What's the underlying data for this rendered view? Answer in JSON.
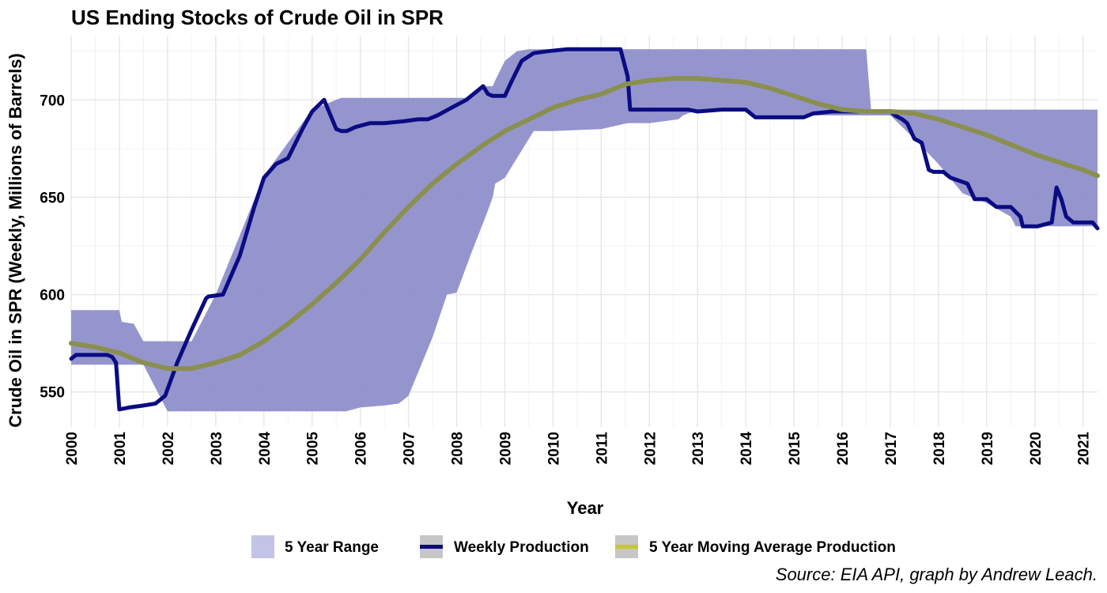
{
  "chart_data": {
    "type": "area",
    "title": "US Ending Stocks of Crude Oil in SPR",
    "xlabel": "Year",
    "ylabel": "Crude Oil in SPR (Weekly, Millions of Barrels)",
    "caption": "Source: EIA API, graph by Andrew Leach.",
    "xlim": [
      2000,
      2021.3
    ],
    "ylim": [
      532,
      733
    ],
    "x_ticks": [
      "2000",
      "2001",
      "2002",
      "2003",
      "2004",
      "2005",
      "2006",
      "2007",
      "2008",
      "2009",
      "2010",
      "2011",
      "2012",
      "2013",
      "2014",
      "2015",
      "2016",
      "2017",
      "2018",
      "2019",
      "2020",
      "2021"
    ],
    "y_ticks": [
      550,
      600,
      650,
      700
    ],
    "grid": true,
    "legend_position": "bottom",
    "legend": [
      {
        "label": "5 Year Range",
        "key": "range"
      },
      {
        "label": "Weekly Production",
        "key": "weekly"
      },
      {
        "label": "5 Year Moving Average Production",
        "key": "avg"
      }
    ],
    "colors": {
      "range_fill": "#8f8fcb",
      "range_legend": "#c3c3e6",
      "weekly": "#0b0b82",
      "avg": "#8a8f4f",
      "avg_legend": "#c8c82a",
      "grid_major": "#e6e6e6",
      "grid_minor": "#f2f2f2"
    },
    "series": [
      {
        "name": "Weekly Production",
        "x": [
          2000.0,
          2000.1,
          2000.6,
          2000.75,
          2000.85,
          2000.93,
          2001.0,
          2001.2,
          2001.5,
          2001.75,
          2001.95,
          2002.2,
          2002.5,
          2002.8,
          2002.85,
          2003.15,
          2003.5,
          2003.8,
          2004.0,
          2004.25,
          2004.5,
          2004.8,
          2005.0,
          2005.25,
          2005.5,
          2005.6,
          2005.72,
          2005.9,
          2006.2,
          2006.5,
          2006.9,
          2007.2,
          2007.4,
          2007.6,
          2007.9,
          2008.2,
          2008.45,
          2008.55,
          2008.65,
          2008.75,
          2009.0,
          2009.15,
          2009.35,
          2009.6,
          2009.9,
          2010.3,
          2010.6,
          2011.0,
          2011.4,
          2011.55,
          2011.6,
          2012.0,
          2012.6,
          2012.8,
          2013.0,
          2013.5,
          2014.0,
          2014.05,
          2014.2,
          2014.5,
          2015.0,
          2015.2,
          2015.4,
          2015.8,
          2016.0,
          2016.5,
          2017.0,
          2017.1,
          2017.25,
          2017.35,
          2017.5,
          2017.65,
          2017.8,
          2017.9,
          2018.1,
          2018.25,
          2018.6,
          2018.75,
          2019.0,
          2019.2,
          2019.5,
          2019.7,
          2019.75,
          2020.05,
          2020.35,
          2020.45,
          2020.55,
          2020.65,
          2020.8,
          2021.0,
          2021.2,
          2021.3
        ],
        "y": [
          567,
          569,
          569,
          569,
          568,
          565,
          541,
          542,
          543,
          544,
          548,
          565,
          582,
          598,
          599,
          600,
          620,
          645,
          660,
          667,
          670,
          685,
          694,
          700,
          685,
          684,
          684,
          686,
          688,
          688,
          689,
          690,
          690,
          692,
          696,
          700,
          705,
          707,
          703,
          702,
          702,
          710,
          720,
          724,
          725,
          726,
          726,
          726,
          726,
          712,
          695,
          695,
          695,
          695,
          694,
          695,
          695,
          694,
          691,
          691,
          691,
          691,
          693,
          694,
          694,
          694,
          694,
          692,
          690,
          688,
          680,
          678,
          664,
          663,
          663,
          660,
          657,
          649,
          649,
          645,
          645,
          640,
          635,
          635,
          637,
          655,
          649,
          640,
          637,
          637,
          637,
          634
        ]
      },
      {
        "name": "5 Year Moving Average Production",
        "x": [
          2000.0,
          2000.5,
          2001.0,
          2001.5,
          2002.0,
          2002.5,
          2003.0,
          2003.5,
          2004.0,
          2004.5,
          2005.0,
          2005.5,
          2006.0,
          2006.5,
          2007.0,
          2007.5,
          2008.0,
          2008.5,
          2009.0,
          2009.5,
          2010.0,
          2010.5,
          2011.0,
          2011.5,
          2012.0,
          2012.5,
          2013.0,
          2013.5,
          2014.0,
          2014.5,
          2015.0,
          2015.5,
          2016.0,
          2016.5,
          2017.0,
          2017.5,
          2018.0,
          2018.5,
          2019.0,
          2019.5,
          2020.0,
          2020.5,
          2021.0,
          2021.3
        ],
        "y": [
          575,
          573,
          570,
          565,
          562,
          562,
          565,
          569,
          576,
          585,
          595,
          606,
          618,
          632,
          645,
          657,
          667,
          676,
          684,
          690,
          696,
          700,
          703,
          708,
          710,
          711,
          711,
          710,
          709,
          706,
          702,
          698,
          695,
          694,
          694,
          693,
          690,
          686,
          682,
          677,
          672,
          668,
          664,
          661
        ]
      },
      {
        "name": "5 Year Range",
        "x": [
          2000.0,
          2001.0,
          2001.05,
          2001.3,
          2001.5,
          2002.0,
          2002.5,
          2003.0,
          2004.0,
          2005.0,
          2005.6,
          2005.7,
          2006.0,
          2006.5,
          2006.8,
          2007.0,
          2007.2,
          2007.5,
          2007.8,
          2008.0,
          2008.3,
          2008.6,
          2008.75,
          2008.8,
          2009.0,
          2009.25,
          2009.5,
          2009.6,
          2009.85,
          2010.0,
          2011.0,
          2011.55,
          2012.0,
          2012.6,
          2012.7,
          2013.0,
          2013.5,
          2014.0,
          2014.1,
          2014.5,
          2015.0,
          2015.5,
          2016.0,
          2016.4,
          2016.5,
          2016.6,
          2017.0,
          2017.5,
          2018.0,
          2018.5,
          2019.0,
          2019.5,
          2019.6,
          2019.75,
          2020.0,
          2020.5,
          2021.0,
          2021.3
        ],
        "upper": [
          592,
          592,
          586,
          585,
          576,
          576,
          576,
          600,
          661,
          695,
          701,
          701,
          701,
          701,
          701,
          701,
          701,
          701,
          701,
          701,
          701,
          707,
          707,
          710,
          720,
          725,
          726,
          726,
          726,
          726,
          726,
          726,
          726,
          726,
          726,
          726,
          726,
          726,
          726,
          726,
          726,
          726,
          726,
          726,
          726,
          695,
          695,
          695,
          695,
          695,
          695,
          695,
          695,
          695,
          695,
          695,
          695,
          695
        ],
        "lower": [
          564,
          564,
          564,
          564,
          564,
          540,
          540,
          540,
          540,
          540,
          540,
          540,
          542,
          543,
          544,
          548,
          560,
          578,
          600,
          601,
          621,
          640,
          650,
          657,
          660,
          670,
          680,
          684,
          684,
          684,
          685,
          688,
          688,
          690,
          692,
          695,
          695,
          695,
          692,
          692,
          692,
          692,
          692,
          692,
          692,
          692,
          692,
          680,
          667,
          652,
          647,
          640,
          635,
          635,
          635,
          635,
          635,
          635
        ]
      }
    ]
  }
}
